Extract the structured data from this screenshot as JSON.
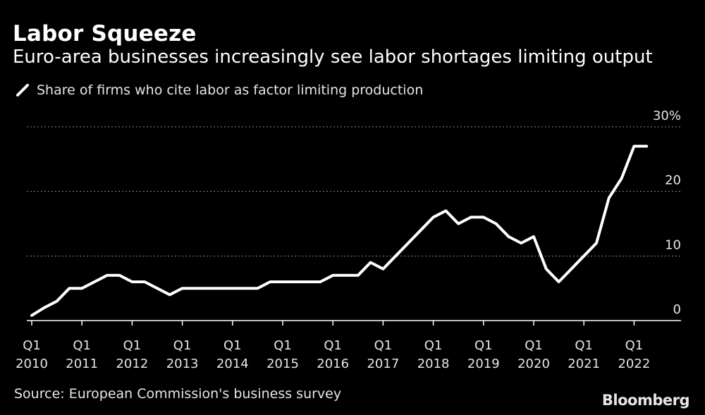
{
  "header": {
    "title": "Labor Squeeze",
    "subtitle": "Euro-area businesses increasingly see labor shortages limiting output"
  },
  "legend": {
    "label": "Share of firms who cite labor as factor limiting production",
    "color": "#ffffff"
  },
  "footer": {
    "source": "Source: European Commission's business survey",
    "brand": "Bloomberg"
  },
  "colors": {
    "background": "#000000",
    "line": "#ffffff",
    "grid": "#8a8a8a",
    "text": "#e6e6e6"
  },
  "chart_data": {
    "type": "line",
    "title": "Labor Squeeze",
    "ylim": [
      0,
      30
    ],
    "yticks": [
      {
        "value": 0,
        "label": "0"
      },
      {
        "value": 10,
        "label": "10"
      },
      {
        "value": 20,
        "label": "20"
      },
      {
        "value": 30,
        "label": "30%"
      }
    ],
    "xticks": [
      {
        "top": "Q1",
        "bottom": "2010"
      },
      {
        "top": "Q1",
        "bottom": "2011"
      },
      {
        "top": "Q1",
        "bottom": "2012"
      },
      {
        "top": "Q1",
        "bottom": "2013"
      },
      {
        "top": "Q1",
        "bottom": "2014"
      },
      {
        "top": "Q1",
        "bottom": "2015"
      },
      {
        "top": "Q1",
        "bottom": "2016"
      },
      {
        "top": "Q1",
        "bottom": "2017"
      },
      {
        "top": "Q1",
        "bottom": "2018"
      },
      {
        "top": "Q1",
        "bottom": "2019"
      },
      {
        "top": "Q1",
        "bottom": "2020"
      },
      {
        "top": "Q1",
        "bottom": "2021"
      },
      {
        "top": "Q1",
        "bottom": "2022"
      }
    ],
    "grid": true,
    "series": [
      {
        "name": "Share of firms who cite labor as factor limiting production",
        "x": [
          "2010 Q1",
          "2010 Q2",
          "2010 Q3",
          "2010 Q4",
          "2011 Q1",
          "2011 Q2",
          "2011 Q3",
          "2011 Q4",
          "2012 Q1",
          "2012 Q2",
          "2012 Q3",
          "2012 Q4",
          "2013 Q1",
          "2013 Q2",
          "2013 Q3",
          "2013 Q4",
          "2014 Q1",
          "2014 Q2",
          "2014 Q3",
          "2014 Q4",
          "2015 Q1",
          "2015 Q2",
          "2015 Q3",
          "2015 Q4",
          "2016 Q1",
          "2016 Q2",
          "2016 Q3",
          "2016 Q4",
          "2017 Q1",
          "2017 Q2",
          "2017 Q3",
          "2017 Q4",
          "2018 Q1",
          "2018 Q2",
          "2018 Q3",
          "2018 Q4",
          "2019 Q1",
          "2019 Q2",
          "2019 Q3",
          "2019 Q4",
          "2020 Q1",
          "2020 Q2",
          "2020 Q3",
          "2020 Q4",
          "2021 Q1",
          "2021 Q2",
          "2021 Q3",
          "2021 Q4",
          "2022 Q1",
          "2022 Q2"
        ],
        "values": [
          0.8,
          2,
          3,
          5,
          5,
          6,
          7,
          7,
          6,
          6,
          5,
          4,
          5,
          5,
          5,
          5,
          5,
          5,
          5,
          6,
          6,
          6,
          6,
          6,
          7,
          7,
          7,
          9,
          8,
          10,
          12,
          14,
          16,
          17,
          15,
          16,
          16,
          15,
          13,
          12,
          13,
          8,
          6,
          8,
          10,
          12,
          19,
          22,
          27,
          27
        ]
      }
    ]
  }
}
